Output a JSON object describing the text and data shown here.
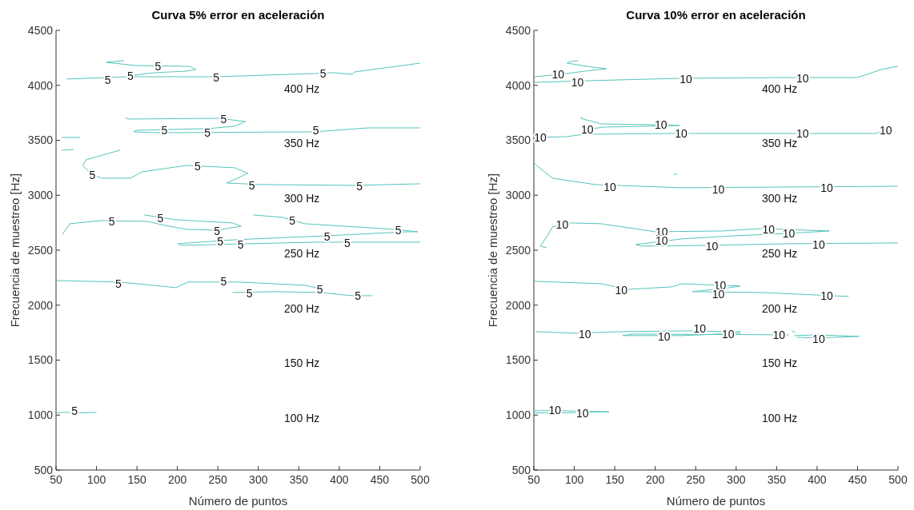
{
  "chart_data": [
    {
      "type": "line",
      "title": "Curva 5% error en aceleración",
      "xlabel": "Número de puntos",
      "ylabel": "Frecuencia de muestreo [Hz]",
      "xlim": [
        50,
        500
      ],
      "ylim": [
        500,
        4500
      ],
      "xticks": [
        50,
        100,
        150,
        200,
        250,
        300,
        350,
        400,
        450,
        500
      ],
      "yticks": [
        500,
        1000,
        1500,
        2000,
        2500,
        3000,
        3500,
        4000,
        4500
      ],
      "series": [
        {
          "color": "#55c4bd",
          "x": [
            134,
            112,
            149,
            215,
            223,
            211,
            172,
            139
          ],
          "values": [
            4224,
            4209,
            4180,
            4173,
            4144,
            4129,
            4115,
            4086
          ]
        },
        {
          "color": "#55c4bd",
          "x": [
            63,
            139,
            248,
            369,
            393,
            416,
            419,
            500
          ],
          "values": [
            4057,
            4078,
            4078,
            4107,
            4115,
            4100,
            4122,
            4202
          ]
        },
        {
          "color": "#55c4bd",
          "x": [
            136,
            139,
            251,
            284,
            271,
            238,
            149,
            146,
            179,
            369,
            436,
            500
          ],
          "values": [
            3708,
            3693,
            3700,
            3671,
            3628,
            3606,
            3591,
            3577,
            3569,
            3577,
            3613,
            3613
          ]
        },
        {
          "color": "#55c4bd",
          "x": [
            57,
            80
          ],
          "values": [
            3526,
            3526
          ]
        },
        {
          "color": "#55c4bd",
          "x": [
            57,
            72
          ],
          "values": [
            3409,
            3417
          ]
        },
        {
          "color": "#55c4bd",
          "x": [
            129,
            87,
            83,
            93,
            106,
            142,
            156,
            211,
            271,
            287,
            261,
            304,
            419,
            500
          ],
          "values": [
            3410,
            3322,
            3271,
            3199,
            3155,
            3155,
            3213,
            3271,
            3250,
            3199,
            3111,
            3097,
            3090,
            3104
          ]
        },
        {
          "color": "#55c4bd",
          "x": [
            58,
            67,
            106,
            162,
            185,
            211,
            248,
            279,
            268,
            198,
            159
          ],
          "values": [
            2646,
            2741,
            2770,
            2762,
            2726,
            2690,
            2682,
            2719,
            2748,
            2777,
            2821
          ]
        },
        {
          "color": "#55c4bd",
          "x": [
            294,
            330,
            357,
            468,
            497,
            485,
            386,
            271,
            201,
            205,
            369,
            500
          ],
          "values": [
            2821,
            2799,
            2741,
            2690,
            2668,
            2668,
            2632,
            2595,
            2559,
            2544,
            2573,
            2573
          ]
        },
        {
          "color": "#55c4bd",
          "x": [
            50,
            129,
            179,
            198,
            213,
            277,
            357,
            376
          ],
          "values": [
            2224,
            2210,
            2174,
            2159,
            2210,
            2210,
            2181,
            2152
          ]
        },
        {
          "color": "#55c4bd",
          "x": [
            268,
            317,
            376,
            416,
            441
          ],
          "values": [
            2115,
            2123,
            2115,
            2086,
            2086
          ]
        },
        {
          "color": "#55c4bd",
          "x": [
            50,
            60,
            80,
            100
          ],
          "values": [
            1020,
            1025,
            1020,
            1025
          ]
        }
      ],
      "annotations": [
        {
          "text": "5",
          "x": 176,
          "y": 4173
        },
        {
          "text": "5",
          "x": 114,
          "y": 4049
        },
        {
          "text": "5",
          "x": 142,
          "y": 4086
        },
        {
          "text": "5",
          "x": 248,
          "y": 4071
        },
        {
          "text": "5",
          "x": 380,
          "y": 4107
        },
        {
          "text": "5",
          "x": 257,
          "y": 3693
        },
        {
          "text": "5",
          "x": 184,
          "y": 3591
        },
        {
          "text": "5",
          "x": 237,
          "y": 3569
        },
        {
          "text": "5",
          "x": 371,
          "y": 3591
        },
        {
          "text": "5",
          "x": 95,
          "y": 3184
        },
        {
          "text": "5",
          "x": 225,
          "y": 3264
        },
        {
          "text": "5",
          "x": 292,
          "y": 3090
        },
        {
          "text": "5",
          "x": 425,
          "y": 3082
        },
        {
          "text": "5",
          "x": 119,
          "y": 2762
        },
        {
          "text": "5",
          "x": 179,
          "y": 2792
        },
        {
          "text": "5",
          "x": 249,
          "y": 2675
        },
        {
          "text": "5",
          "x": 253,
          "y": 2581
        },
        {
          "text": "5",
          "x": 278,
          "y": 2552
        },
        {
          "text": "5",
          "x": 342,
          "y": 2770
        },
        {
          "text": "5",
          "x": 385,
          "y": 2624
        },
        {
          "text": "5",
          "x": 410,
          "y": 2566
        },
        {
          "text": "5",
          "x": 473,
          "y": 2682
        },
        {
          "text": "5",
          "x": 127,
          "y": 2195
        },
        {
          "text": "5",
          "x": 257,
          "y": 2217
        },
        {
          "text": "5",
          "x": 289,
          "y": 2108
        },
        {
          "text": "5",
          "x": 376,
          "y": 2144
        },
        {
          "text": "5",
          "x": 423,
          "y": 2086
        },
        {
          "text": "5",
          "x": 73,
          "y": 1039
        },
        "400 Hz",
        "350 Hz",
        "300 Hz",
        "250 Hz",
        "200 Hz",
        "150 Hz",
        "100 Hz"
      ]
    },
    {
      "type": "line",
      "title": "Curva 10% error en aceleración",
      "xlabel": "Número de puntos",
      "ylabel": "Frecuencia de muestreo [Hz]",
      "xlim": [
        50,
        500
      ],
      "ylim": [
        500,
        4500
      ],
      "xticks": [
        50,
        100,
        150,
        200,
        250,
        300,
        350,
        400,
        450,
        500
      ],
      "yticks": [
        500,
        1000,
        1500,
        2000,
        2500,
        3000,
        3500,
        4000,
        4500
      ],
      "series": [
        {
          "color": "#55c4bd",
          "x": [
            51,
            73
          ],
          "values": [
            4078,
            4093
          ]
        },
        {
          "color": "#55c4bd",
          "x": [
            105,
            95,
            91,
            116,
            140,
            113,
            83
          ],
          "values": [
            4224,
            4216,
            4202,
            4173,
            4151,
            4129,
            4100
          ]
        },
        {
          "color": "#55c4bd",
          "x": [
            51,
            116,
            233,
            365,
            449,
            465,
            479,
            500
          ],
          "values": [
            4027,
            4042,
            4064,
            4071,
            4071,
            4107,
            4144,
            4173
          ]
        },
        {
          "color": "#55c4bd",
          "x": [
            110,
            108,
            133,
            193,
            230,
            136,
            116
          ],
          "values": [
            3715,
            3700,
            3649,
            3642,
            3635,
            3620,
            3598
          ]
        },
        {
          "color": "#55c4bd",
          "x": [
            51,
            90,
            113,
            220,
            365,
            472,
            485
          ],
          "values": [
            3526,
            3533,
            3555,
            3562,
            3562,
            3562,
            3591
          ]
        },
        {
          "color": "#55c4bd",
          "x": [
            51,
            73,
            126,
            233,
            365,
            500
          ],
          "values": [
            3286,
            3155,
            3097,
            3068,
            3075,
            3082
          ]
        },
        {
          "color": "#55c4bd",
          "x": [
            223,
            227
          ],
          "values": [
            3191,
            3191
          ]
        },
        {
          "color": "#55c4bd",
          "x": [
            66,
            58,
            68,
            73,
            96,
            133,
            200,
            283,
            332,
            415,
            365,
            300,
            233,
            176,
            183,
            266,
            365,
            500
          ],
          "values": [
            2522,
            2537,
            2646,
            2712,
            2748,
            2741,
            2668,
            2675,
            2697,
            2675,
            2653,
            2632,
            2603,
            2552,
            2537,
            2544,
            2559,
            2566
          ]
        },
        {
          "color": "#55c4bd",
          "x": [
            51,
            133,
            166,
            220,
            233,
            305,
            292,
            246,
            332,
            439
          ],
          "values": [
            2217,
            2195,
            2144,
            2166,
            2195,
            2174,
            2159,
            2123,
            2115,
            2079
          ]
        },
        {
          "color": "#55c4bd",
          "x": [
            53,
            100,
            160,
            233,
            305,
            305,
            233,
            160,
            173,
            365
          ],
          "values": [
            1759,
            1745,
            1759,
            1766,
            1759,
            1745,
            1723,
            1723,
            1737,
            1730
          ]
        },
        {
          "color": "#55c4bd",
          "x": [
            372,
            399,
            452,
            399,
            375
          ],
          "values": [
            1723,
            1730,
            1716,
            1701,
            1708
          ]
        },
        {
          "color": "#55c4bd",
          "x": [
            369,
            373
          ],
          "values": [
            1766,
            1752
          ]
        },
        {
          "color": "#55c4bd",
          "x": [
            50,
            83,
            143,
            83,
            50
          ],
          "values": [
            1040,
            1040,
            1030,
            1020,
            1020
          ]
        }
      ],
      "annotations": [
        {
          "text": "10",
          "x": 80,
          "y": 4100
        },
        {
          "text": "10",
          "x": 104,
          "y": 4027
        },
        {
          "text": "10",
          "x": 238,
          "y": 4057
        },
        {
          "text": "10",
          "x": 382,
          "y": 4064
        },
        {
          "text": "10",
          "x": 116,
          "y": 3598
        },
        {
          "text": "10",
          "x": 58,
          "y": 3526
        },
        {
          "text": "10",
          "x": 207,
          "y": 3642
        },
        {
          "text": "10",
          "x": 232,
          "y": 3562
        },
        {
          "text": "10",
          "x": 382,
          "y": 3562
        },
        {
          "text": "10",
          "x": 485,
          "y": 3591
        },
        {
          "text": "10",
          "x": 144,
          "y": 3075
        },
        {
          "text": "10",
          "x": 278,
          "y": 3053
        },
        {
          "text": "10",
          "x": 412,
          "y": 3068
        },
        {
          "text": "10",
          "x": 85,
          "y": 2733
        },
        {
          "text": "10",
          "x": 208,
          "y": 2668
        },
        {
          "text": "10",
          "x": 208,
          "y": 2588
        },
        {
          "text": "10",
          "x": 270,
          "y": 2537
        },
        {
          "text": "10",
          "x": 340,
          "y": 2690
        },
        {
          "text": "10",
          "x": 365,
          "y": 2653
        },
        {
          "text": "10",
          "x": 402,
          "y": 2552
        },
        {
          "text": "10",
          "x": 158,
          "y": 2137
        },
        {
          "text": "10",
          "x": 280,
          "y": 2181
        },
        {
          "text": "10",
          "x": 278,
          "y": 2101
        },
        {
          "text": "10",
          "x": 412,
          "y": 2086
        },
        {
          "text": "10",
          "x": 113,
          "y": 1737
        },
        {
          "text": "10",
          "x": 211,
          "y": 1716
        },
        {
          "text": "10",
          "x": 290,
          "y": 1733
        },
        {
          "text": "10",
          "x": 255,
          "y": 1790
        },
        {
          "text": "10",
          "x": 353,
          "y": 1730
        },
        {
          "text": "10",
          "x": 402,
          "y": 1694
        },
        {
          "text": "10",
          "x": 76,
          "y": 1047
        },
        {
          "text": "10",
          "x": 110,
          "y": 1017
        },
        "400 Hz",
        "350 Hz",
        "300 Hz",
        "250 Hz",
        "200 Hz",
        "150 Hz",
        "100 Hz"
      ]
    }
  ]
}
